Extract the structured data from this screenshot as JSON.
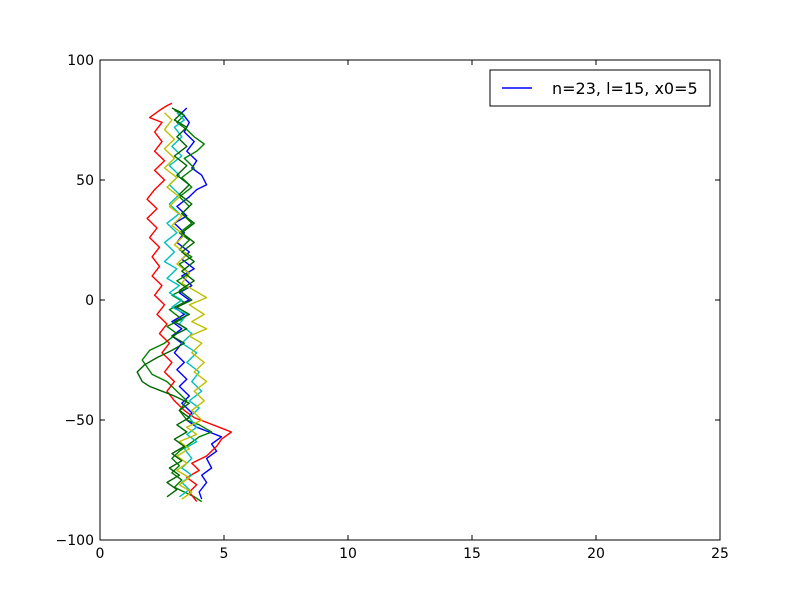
{
  "chart_data": {
    "type": "line",
    "title": "",
    "xlabel": "",
    "ylabel": "",
    "xlim": [
      0,
      25
    ],
    "ylim": [
      -100,
      100
    ],
    "xticks": [
      0,
      5,
      10,
      15,
      20,
      25
    ],
    "yticks": [
      -100,
      -50,
      0,
      50,
      100
    ],
    "xtick_labels": [
      "0",
      "5",
      "10",
      "15",
      "20",
      "25"
    ],
    "ytick_labels": [
      "−100",
      "−50",
      "0",
      "50",
      "100"
    ],
    "grid": false,
    "legend": {
      "placement": "top-right",
      "entries": [
        {
          "label": "n=23, l=15, x0=5",
          "color": "#0000ff"
        }
      ]
    },
    "series": [
      {
        "color": "#0000ff",
        "points": [
          [
            4.1,
            -83
          ],
          [
            4.0,
            -80
          ],
          [
            4.3,
            -76
          ],
          [
            4.1,
            -73
          ],
          [
            4.5,
            -70
          ],
          [
            4.3,
            -66
          ],
          [
            4.7,
            -63
          ],
          [
            4.5,
            -60
          ],
          [
            4.9,
            -57
          ],
          [
            4.4,
            -55
          ],
          [
            3.9,
            -53
          ],
          [
            3.5,
            -50
          ],
          [
            3.7,
            -47
          ],
          [
            3.3,
            -43
          ],
          [
            3.6,
            -40
          ],
          [
            3.2,
            -36
          ],
          [
            3.5,
            -33
          ],
          [
            3.1,
            -29
          ],
          [
            3.4,
            -26
          ],
          [
            3.0,
            -22
          ],
          [
            3.3,
            -18
          ],
          [
            2.9,
            -15
          ],
          [
            3.3,
            -12
          ],
          [
            2.9,
            -9
          ],
          [
            3.4,
            -6
          ],
          [
            3.0,
            -3
          ],
          [
            3.6,
            0
          ],
          [
            3.2,
            3
          ],
          [
            3.7,
            6
          ],
          [
            3.3,
            10
          ],
          [
            3.8,
            13
          ],
          [
            3.3,
            17
          ],
          [
            3.6,
            20
          ],
          [
            3.1,
            24
          ],
          [
            3.4,
            28
          ],
          [
            3.0,
            32
          ],
          [
            3.5,
            35
          ],
          [
            3.1,
            39
          ],
          [
            3.6,
            43
          ],
          [
            3.9,
            46
          ],
          [
            4.3,
            48
          ],
          [
            4.1,
            52
          ],
          [
            3.7,
            55
          ],
          [
            3.9,
            58
          ],
          [
            3.5,
            62
          ],
          [
            3.8,
            66
          ],
          [
            3.4,
            70
          ],
          [
            3.6,
            74
          ],
          [
            3.3,
            78
          ],
          [
            3.5,
            80
          ]
        ]
      },
      {
        "color": "#008000",
        "points": [
          [
            4.1,
            -84
          ],
          [
            3.8,
            -82
          ],
          [
            3.4,
            -80
          ],
          [
            3.0,
            -78
          ],
          [
            3.3,
            -75
          ],
          [
            2.9,
            -72
          ],
          [
            3.2,
            -69
          ],
          [
            2.9,
            -66
          ],
          [
            3.2,
            -63
          ],
          [
            3.6,
            -60
          ],
          [
            4.0,
            -57
          ],
          [
            4.5,
            -55
          ],
          [
            4.0,
            -52
          ],
          [
            3.5,
            -50
          ],
          [
            3.2,
            -46
          ],
          [
            3.5,
            -42
          ],
          [
            3.1,
            -38
          ],
          [
            2.7,
            -34
          ],
          [
            2.1,
            -31
          ],
          [
            1.7,
            -25
          ],
          [
            2.0,
            -21
          ],
          [
            2.6,
            -18
          ],
          [
            3.1,
            -14
          ],
          [
            2.7,
            -11
          ],
          [
            3.3,
            -8
          ],
          [
            2.8,
            -4
          ],
          [
            3.4,
            -1
          ],
          [
            2.9,
            2
          ],
          [
            3.5,
            5
          ],
          [
            3.1,
            8
          ],
          [
            3.6,
            11
          ],
          [
            3.2,
            15
          ],
          [
            3.7,
            18
          ],
          [
            3.2,
            21
          ],
          [
            3.6,
            25
          ],
          [
            3.2,
            28
          ],
          [
            3.7,
            32
          ],
          [
            3.3,
            36
          ],
          [
            3.6,
            39
          ],
          [
            3.2,
            43
          ],
          [
            3.7,
            47
          ],
          [
            3.3,
            51
          ],
          [
            3.8,
            55
          ],
          [
            3.4,
            59
          ],
          [
            3.9,
            62
          ],
          [
            4.2,
            65
          ],
          [
            3.8,
            68
          ],
          [
            3.5,
            71
          ],
          [
            3.1,
            74
          ],
          [
            3.4,
            77
          ],
          [
            3.0,
            79
          ]
        ]
      },
      {
        "color": "#ff0000",
        "points": [
          [
            3.9,
            -84
          ],
          [
            3.6,
            -80
          ],
          [
            3.9,
            -77
          ],
          [
            3.5,
            -74
          ],
          [
            4.0,
            -71
          ],
          [
            3.7,
            -68
          ],
          [
            4.3,
            -65
          ],
          [
            4.7,
            -61
          ],
          [
            4.9,
            -58
          ],
          [
            5.3,
            -55
          ],
          [
            4.8,
            -53
          ],
          [
            4.3,
            -51
          ],
          [
            3.8,
            -49
          ],
          [
            3.4,
            -46
          ],
          [
            3.0,
            -42
          ],
          [
            2.7,
            -38
          ],
          [
            3.0,
            -34
          ],
          [
            2.6,
            -30
          ],
          [
            2.9,
            -26
          ],
          [
            2.5,
            -22
          ],
          [
            2.8,
            -18
          ],
          [
            2.4,
            -14
          ],
          [
            2.7,
            -10
          ],
          [
            2.3,
            -6
          ],
          [
            2.6,
            -2
          ],
          [
            2.2,
            2
          ],
          [
            2.5,
            6
          ],
          [
            2.1,
            10
          ],
          [
            2.4,
            14
          ],
          [
            2.1,
            18
          ],
          [
            2.4,
            22
          ],
          [
            2.0,
            26
          ],
          [
            2.3,
            30
          ],
          [
            1.9,
            34
          ],
          [
            2.3,
            38
          ],
          [
            1.9,
            42
          ],
          [
            2.2,
            46
          ],
          [
            2.6,
            50
          ],
          [
            2.2,
            54
          ],
          [
            2.6,
            58
          ],
          [
            2.2,
            62
          ],
          [
            2.5,
            66
          ],
          [
            2.2,
            70
          ],
          [
            2.5,
            74
          ],
          [
            2.0,
            76
          ],
          [
            2.4,
            79
          ],
          [
            2.7,
            81
          ],
          [
            2.9,
            82
          ]
        ]
      },
      {
        "color": "#00bfbf",
        "points": [
          [
            3.2,
            -82
          ],
          [
            3.6,
            -79
          ],
          [
            3.3,
            -76
          ],
          [
            3.7,
            -73
          ],
          [
            3.3,
            -70
          ],
          [
            3.7,
            -66
          ],
          [
            3.4,
            -62
          ],
          [
            3.9,
            -59
          ],
          [
            3.5,
            -56
          ],
          [
            3.9,
            -53
          ],
          [
            3.6,
            -49
          ],
          [
            4.0,
            -45
          ],
          [
            3.6,
            -42
          ],
          [
            4.1,
            -38
          ],
          [
            3.7,
            -34
          ],
          [
            4.0,
            -30
          ],
          [
            3.5,
            -26
          ],
          [
            3.9,
            -22
          ],
          [
            3.3,
            -18
          ],
          [
            3.7,
            -14
          ],
          [
            3.2,
            -10
          ],
          [
            3.5,
            -6
          ],
          [
            2.9,
            -3
          ],
          [
            3.3,
            0
          ],
          [
            2.8,
            3
          ],
          [
            3.2,
            6
          ],
          [
            2.7,
            9
          ],
          [
            3.1,
            13
          ],
          [
            2.6,
            16
          ],
          [
            3.0,
            20
          ],
          [
            2.6,
            24
          ],
          [
            3.1,
            28
          ],
          [
            2.7,
            32
          ],
          [
            3.2,
            36
          ],
          [
            2.8,
            40
          ],
          [
            3.2,
            44
          ],
          [
            2.8,
            48
          ],
          [
            3.2,
            52
          ],
          [
            2.8,
            56
          ],
          [
            3.3,
            60
          ],
          [
            2.9,
            64
          ],
          [
            3.3,
            68
          ],
          [
            3.0,
            72
          ],
          [
            3.4,
            75
          ],
          [
            3.1,
            78
          ]
        ]
      },
      {
        "color": "#bfbf00",
        "points": [
          [
            3.3,
            -83
          ],
          [
            3.7,
            -80
          ],
          [
            3.2,
            -77
          ],
          [
            3.6,
            -74
          ],
          [
            3.1,
            -71
          ],
          [
            3.5,
            -68
          ],
          [
            3.1,
            -65
          ],
          [
            3.6,
            -62
          ],
          [
            3.2,
            -59
          ],
          [
            3.9,
            -56
          ],
          [
            3.5,
            -53
          ],
          [
            4.1,
            -50
          ],
          [
            3.7,
            -46
          ],
          [
            4.2,
            -42
          ],
          [
            3.8,
            -38
          ],
          [
            4.3,
            -34
          ],
          [
            3.8,
            -30
          ],
          [
            4.2,
            -26
          ],
          [
            3.7,
            -22
          ],
          [
            4.1,
            -18
          ],
          [
            3.6,
            -15
          ],
          [
            4.3,
            -12
          ],
          [
            3.7,
            -9
          ],
          [
            4.2,
            -6
          ],
          [
            3.6,
            -2
          ],
          [
            4.3,
            1
          ],
          [
            3.8,
            4
          ],
          [
            3.3,
            7
          ],
          [
            3.6,
            11
          ],
          [
            3.1,
            15
          ],
          [
            3.5,
            19
          ],
          [
            3.0,
            23
          ],
          [
            3.4,
            27
          ],
          [
            2.9,
            31
          ],
          [
            3.3,
            35
          ],
          [
            2.8,
            39
          ],
          [
            3.2,
            43
          ],
          [
            2.7,
            47
          ],
          [
            3.1,
            51
          ],
          [
            2.6,
            55
          ],
          [
            3.0,
            59
          ],
          [
            2.6,
            63
          ],
          [
            3.0,
            67
          ],
          [
            2.6,
            71
          ],
          [
            2.9,
            75
          ],
          [
            2.6,
            78
          ]
        ]
      },
      {
        "color": "#006400",
        "points": [
          [
            2.7,
            -82
          ],
          [
            3.1,
            -79
          ],
          [
            2.7,
            -76
          ],
          [
            3.2,
            -73
          ],
          [
            2.8,
            -70
          ],
          [
            3.3,
            -67
          ],
          [
            2.9,
            -64
          ],
          [
            3.4,
            -61
          ],
          [
            3.0,
            -58
          ],
          [
            3.5,
            -55
          ],
          [
            3.1,
            -52
          ],
          [
            3.6,
            -49
          ],
          [
            3.2,
            -46
          ],
          [
            3.6,
            -43
          ],
          [
            3.0,
            -40
          ],
          [
            2.5,
            -38
          ],
          [
            2.0,
            -36
          ],
          [
            1.7,
            -34
          ],
          [
            1.5,
            -30
          ],
          [
            1.8,
            -27
          ],
          [
            2.3,
            -24
          ],
          [
            2.9,
            -21
          ],
          [
            3.4,
            -18
          ],
          [
            2.9,
            -15
          ],
          [
            3.5,
            -12
          ],
          [
            3.0,
            -9
          ],
          [
            3.6,
            -6
          ],
          [
            3.1,
            -3
          ],
          [
            3.7,
            0
          ],
          [
            3.2,
            4
          ],
          [
            3.8,
            8
          ],
          [
            3.3,
            12
          ],
          [
            3.8,
            16
          ],
          [
            3.3,
            20
          ],
          [
            3.8,
            24
          ],
          [
            3.3,
            28
          ],
          [
            3.8,
            32
          ],
          [
            3.3,
            36
          ],
          [
            3.7,
            40
          ],
          [
            3.2,
            44
          ],
          [
            3.6,
            48
          ],
          [
            3.1,
            52
          ],
          [
            3.5,
            56
          ],
          [
            3.0,
            60
          ],
          [
            3.5,
            64
          ],
          [
            3.1,
            68
          ],
          [
            3.5,
            72
          ],
          [
            3.0,
            75
          ],
          [
            3.3,
            78
          ],
          [
            2.9,
            80
          ]
        ]
      }
    ]
  }
}
